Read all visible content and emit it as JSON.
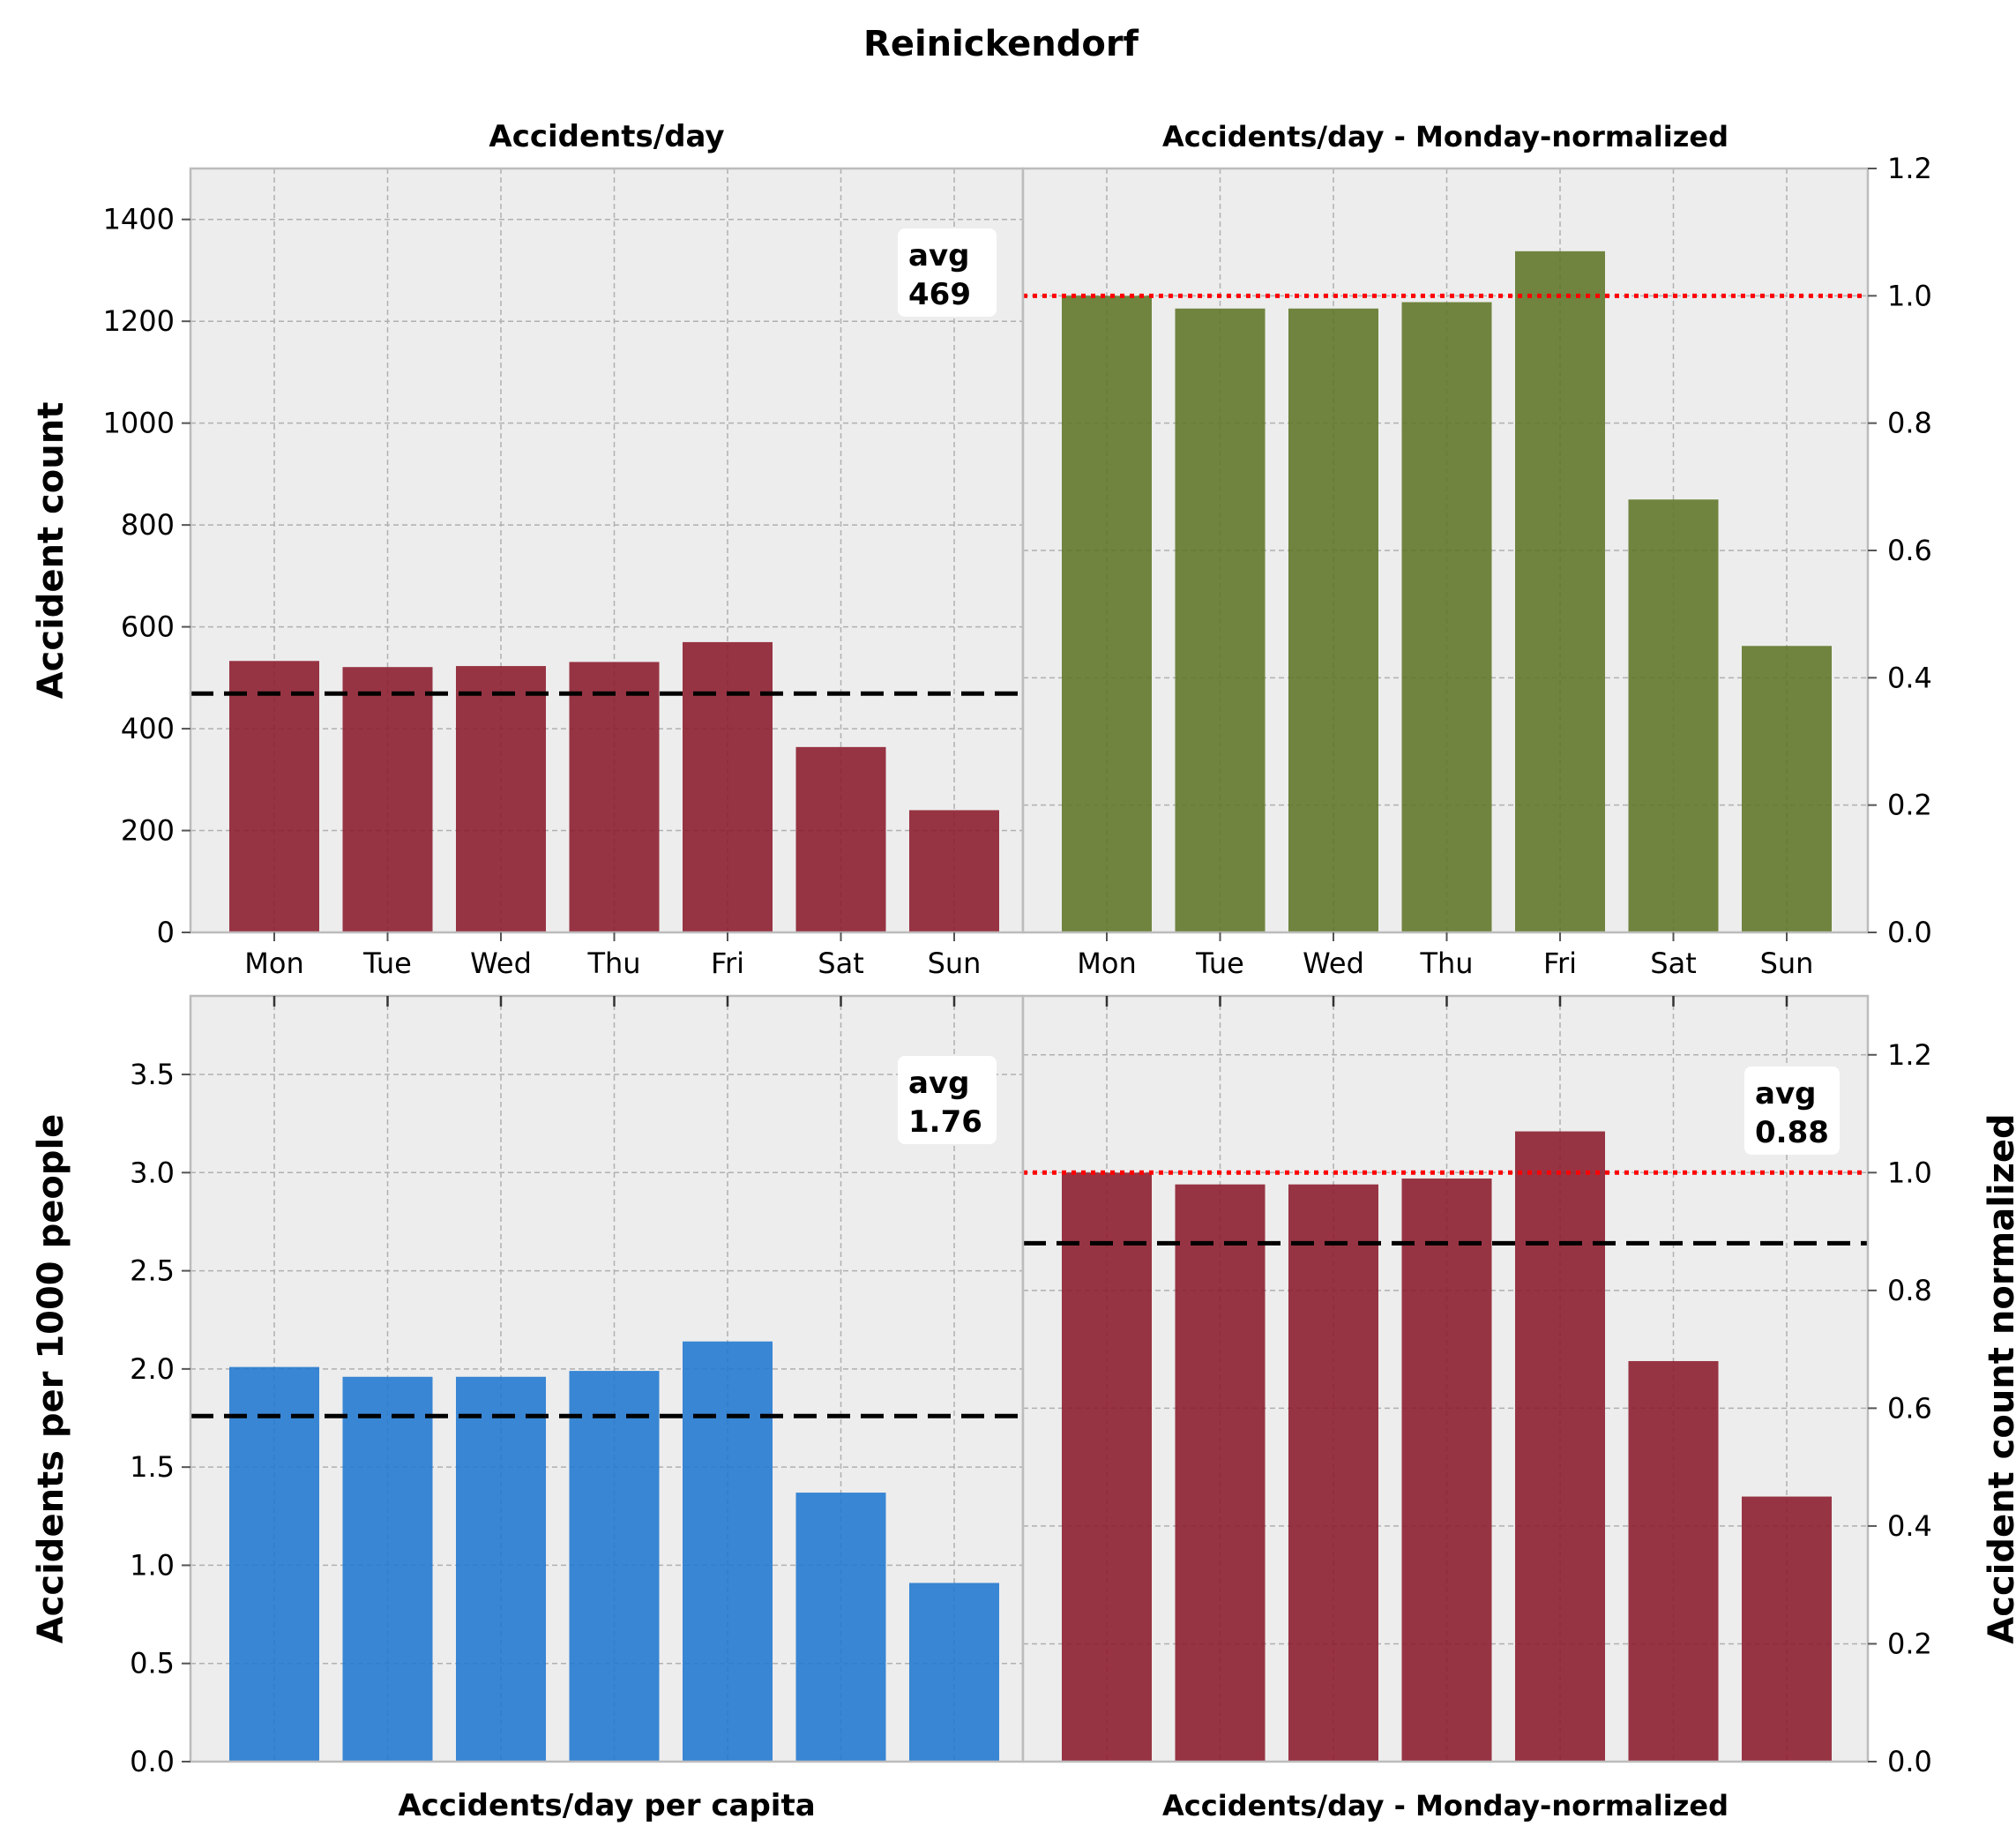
{
  "figure": {
    "title": "Reinickendorf"
  },
  "chart_data": [
    {
      "id": "top_left",
      "type": "bar",
      "title": "Accidents/day",
      "xlabel": "",
      "ylabel": "Accident count",
      "y_axis_side": "left",
      "categories": [
        "Mon",
        "Tue",
        "Wed",
        "Thu",
        "Fri",
        "Sat",
        "Sun"
      ],
      "values": [
        533,
        521,
        523,
        531,
        570,
        364,
        240
      ],
      "ylim": [
        0,
        1500
      ],
      "yticks": [
        0,
        200,
        400,
        600,
        800,
        1000,
        1200,
        1400
      ],
      "ytick_labels": [
        "0",
        "200",
        "400",
        "600",
        "800",
        "1000",
        "1200",
        "1400"
      ],
      "bar_color": "#8b1a2b",
      "avg_line": 469,
      "annotation": {
        "line1": "avg",
        "line2": "469",
        "placement": "top-right"
      },
      "show_x_tick_labels": true,
      "grid": true
    },
    {
      "id": "top_right",
      "type": "bar",
      "title": "Accidents/day - Monday-normalized",
      "xlabel": "",
      "ylabel": "",
      "y_axis_side": "right",
      "categories": [
        "Mon",
        "Tue",
        "Wed",
        "Thu",
        "Fri",
        "Sat",
        "Sun"
      ],
      "values": [
        1.0,
        0.98,
        0.98,
        0.99,
        1.07,
        0.68,
        0.45
      ],
      "ylim": [
        0,
        1.2
      ],
      "yticks": [
        0.0,
        0.2,
        0.4,
        0.6,
        0.8,
        1.0,
        1.2
      ],
      "ytick_labels": [
        "0.0",
        "0.2",
        "0.4",
        "0.6",
        "0.8",
        "1.0",
        "1.2"
      ],
      "bar_color": "#5f7527",
      "ref_line": 1.0,
      "show_x_tick_labels": true,
      "grid": true
    },
    {
      "id": "bottom_left",
      "type": "bar",
      "title": "",
      "xlabel": "Accidents/day per capita",
      "ylabel": "Accidents per 1000 people",
      "y_axis_side": "left",
      "categories": [
        "Mon",
        "Tue",
        "Wed",
        "Thu",
        "Fri",
        "Sat",
        "Sun"
      ],
      "values": [
        2.01,
        1.96,
        1.96,
        1.99,
        2.14,
        1.37,
        0.91
      ],
      "ylim": [
        0,
        3.9
      ],
      "yticks": [
        0.0,
        0.5,
        1.0,
        1.5,
        2.0,
        2.5,
        3.0,
        3.5
      ],
      "ytick_labels": [
        "0.0",
        "0.5",
        "1.0",
        "1.5",
        "2.0",
        "2.5",
        "3.0",
        "3.5"
      ],
      "bar_color": "#1f77d0",
      "avg_line": 1.76,
      "annotation": {
        "line1": "avg",
        "line2": "1.76",
        "placement": "top-right"
      },
      "show_x_tick_labels": false,
      "grid": true
    },
    {
      "id": "bottom_right",
      "type": "bar",
      "title": "",
      "xlabel": "Accidents/day - Monday-normalized",
      "ylabel": "Accident count normalized",
      "y_axis_side": "right",
      "categories": [
        "Mon",
        "Tue",
        "Wed",
        "Thu",
        "Fri",
        "Sat",
        "Sun"
      ],
      "values": [
        1.0,
        0.98,
        0.98,
        0.99,
        1.07,
        0.68,
        0.45
      ],
      "ylim": [
        0,
        1.3
      ],
      "yticks": [
        0.0,
        0.2,
        0.4,
        0.6,
        0.8,
        1.0,
        1.2
      ],
      "ytick_labels": [
        "0.0",
        "0.2",
        "0.4",
        "0.6",
        "0.8",
        "1.0",
        "1.2"
      ],
      "bar_color": "#8b1a2b",
      "avg_line": 0.88,
      "ref_line": 1.0,
      "annotation": {
        "line1": "avg",
        "line2": "0.88",
        "placement": "top-right"
      },
      "show_x_tick_labels": false,
      "grid": true
    }
  ]
}
